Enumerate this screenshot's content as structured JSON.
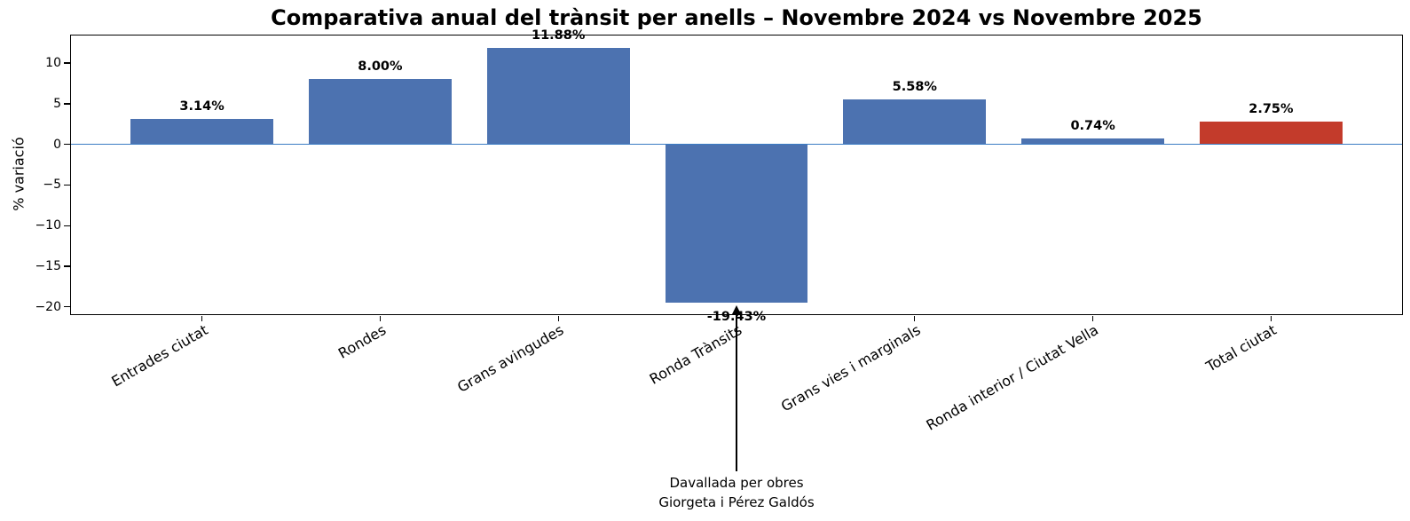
{
  "chart_data": {
    "type": "bar",
    "title": "Comparativa anual del trànsit per anells – Novembre 2024 vs Novembre 2025",
    "ylabel": "% variació",
    "xlabel": "",
    "categories": [
      "Entrades ciutat",
      "Rondes",
      "Grans avingudes",
      "Ronda Trànsits",
      "Grans vies i marginals",
      "Ronda interior / Ciutat Vella",
      "Total ciutat"
    ],
    "values": [
      3.14,
      8.0,
      11.88,
      -19.43,
      5.58,
      0.74,
      2.75
    ],
    "value_labels": [
      "3.14%",
      "8.00%",
      "11.88%",
      "-19.43%",
      "5.58%",
      "0.74%",
      "2.75%"
    ],
    "bar_colors": [
      "#4C72B0",
      "#4C72B0",
      "#4C72B0",
      "#4C72B0",
      "#4C72B0",
      "#4C72B0",
      "#C33B2B"
    ],
    "yticks": [
      10,
      5,
      0,
      -5,
      -10,
      -15,
      -20
    ],
    "ytick_labels": [
      "10",
      "5",
      "0",
      "−5",
      "−10",
      "−15",
      "−20"
    ],
    "ylim": [
      -21,
      13.5
    ],
    "xlim": [
      -0.74,
      6.74
    ],
    "bar_width": 0.8,
    "grid": false,
    "zero_line": {
      "y": 0,
      "color": "#3B7CC4"
    },
    "annotation": {
      "text_lines": [
        "Davallada per obres",
        "Giorgeta i Pérez Galdós"
      ],
      "target_category": "Ronda Trànsits",
      "target_index": 3
    }
  }
}
